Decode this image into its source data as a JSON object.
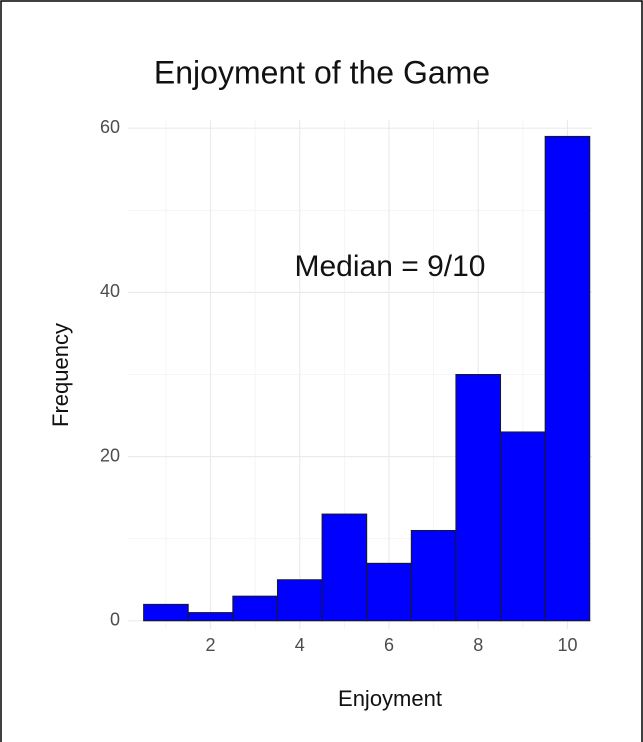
{
  "chart_data": {
    "type": "histogram",
    "title": "Enjoyment of the Game",
    "annotation": "Median = 9/10",
    "xlabel": "Enjoyment",
    "ylabel": "Frequency",
    "bins": [
      0.5,
      1.5,
      2.5,
      3.5,
      4.5,
      5.5,
      6.5,
      7.5,
      8.5,
      9.5,
      10.5
    ],
    "values": [
      2,
      1,
      3,
      5,
      13,
      7,
      11,
      30,
      23,
      59
    ],
    "color": "#0000ff",
    "edgecolor": "#1a1a1a",
    "xlim": [
      0.15,
      10.55
    ],
    "ylim": [
      -1,
      61
    ],
    "xticks": [
      2,
      4,
      6,
      8,
      10
    ],
    "yticks": [
      0,
      20,
      40,
      60
    ],
    "xminorticks": [
      1,
      3,
      5,
      7,
      9
    ],
    "yminorticks": [
      10,
      30,
      50
    ],
    "grid": true
  }
}
